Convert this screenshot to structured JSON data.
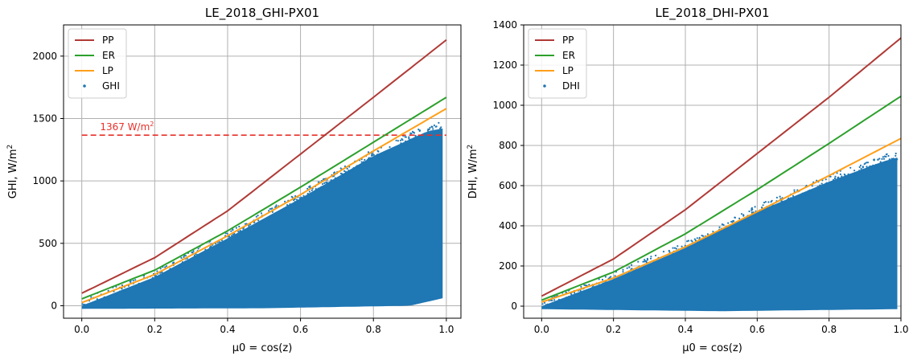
{
  "chart_data": [
    {
      "type": "scatter",
      "title": "LE_2018_GHI-PX01",
      "xlabel": "μ0 = cos(z)",
      "ylabel_main": "GHI, W/m",
      "ylabel_sup": "2",
      "xlim": [
        -0.05,
        1.04
      ],
      "ylim": [
        -100,
        2250
      ],
      "xticks": [
        0.0,
        0.2,
        0.4,
        0.6,
        0.8,
        1.0
      ],
      "xtick_labels": [
        "0.0",
        "0.2",
        "0.4",
        "0.6",
        "0.8",
        "1.0"
      ],
      "yticks": [
        0,
        500,
        1000,
        1500,
        2000
      ],
      "ytick_labels": [
        "0",
        "500",
        "1000",
        "1500",
        "2000"
      ],
      "grid": true,
      "legend_position": "top-left",
      "legend": [
        "PP",
        "ER",
        "LP",
        "GHI"
      ],
      "series": [
        {
          "name": "PP",
          "kind": "line",
          "color": "#b03a36",
          "values": [
            [
              0.0,
              100
            ],
            [
              0.2,
              385
            ],
            [
              0.4,
              760
            ],
            [
              0.6,
              1215
            ],
            [
              0.8,
              1670
            ],
            [
              1.0,
              2130
            ]
          ]
        },
        {
          "name": "ER",
          "kind": "line",
          "color": "#2ca02c",
          "values": [
            [
              0.0,
              55
            ],
            [
              0.2,
              285
            ],
            [
              0.4,
              600
            ],
            [
              0.6,
              950
            ],
            [
              0.8,
              1310
            ],
            [
              1.0,
              1670
            ]
          ]
        },
        {
          "name": "LP",
          "kind": "line",
          "color": "#ff9f1a",
          "values": [
            [
              0.0,
              25
            ],
            [
              0.2,
              250
            ],
            [
              0.4,
              560
            ],
            [
              0.6,
              890
            ],
            [
              0.8,
              1240
            ],
            [
              1.0,
              1580
            ]
          ]
        },
        {
          "name": "GHI",
          "kind": "scatter",
          "color": "#1f77b4",
          "upper_envelope": [
            [
              0.0,
              0
            ],
            [
              0.2,
              230
            ],
            [
              0.4,
              540
            ],
            [
              0.6,
              860
            ],
            [
              0.8,
              1200
            ],
            [
              0.95,
              1400
            ],
            [
              0.99,
              1420
            ]
          ],
          "lower_envelope": [
            [
              0.0,
              -25
            ],
            [
              0.5,
              -20
            ],
            [
              0.9,
              0
            ],
            [
              0.99,
              60
            ]
          ]
        }
      ],
      "reference_line": {
        "y": 1367,
        "label": "1367 W/m",
        "label_sup": "2",
        "color": "#e8312a"
      }
    },
    {
      "type": "scatter",
      "title": "LE_2018_DHI-PX01",
      "xlabel": "μ0 = cos(z)",
      "ylabel_main": "DHI, W/m",
      "ylabel_sup": "2",
      "xlim": [
        -0.05,
        1.0
      ],
      "ylim": [
        -60,
        1400
      ],
      "xticks": [
        0.0,
        0.2,
        0.4,
        0.6,
        0.8,
        1.0
      ],
      "xtick_labels": [
        "0.0",
        "0.2",
        "0.4",
        "0.6",
        "0.8",
        "1.0"
      ],
      "yticks": [
        0,
        200,
        400,
        600,
        800,
        1000,
        1200,
        1400
      ],
      "ytick_labels": [
        "0",
        "200",
        "400",
        "600",
        "800",
        "1000",
        "1200",
        "1400"
      ],
      "grid": true,
      "legend_position": "top-left",
      "legend": [
        "PP",
        "ER",
        "LP",
        "DHI"
      ],
      "series": [
        {
          "name": "PP",
          "kind": "line",
          "color": "#b03a36",
          "values": [
            [
              0.0,
              50
            ],
            [
              0.2,
              235
            ],
            [
              0.4,
              480
            ],
            [
              0.6,
              760
            ],
            [
              0.8,
              1040
            ],
            [
              1.0,
              1335
            ]
          ]
        },
        {
          "name": "ER",
          "kind": "line",
          "color": "#2ca02c",
          "values": [
            [
              0.0,
              30
            ],
            [
              0.2,
              170
            ],
            [
              0.4,
              360
            ],
            [
              0.6,
              580
            ],
            [
              0.8,
              810
            ],
            [
              1.0,
              1045
            ]
          ]
        },
        {
          "name": "LP",
          "kind": "line",
          "color": "#ff9f1a",
          "values": [
            [
              0.0,
              20
            ],
            [
              0.2,
              140
            ],
            [
              0.4,
              295
            ],
            [
              0.6,
              470
            ],
            [
              0.8,
              650
            ],
            [
              1.0,
              835
            ]
          ]
        },
        {
          "name": "DHI",
          "kind": "scatter",
          "color": "#1f77b4",
          "upper_envelope": [
            [
              0.0,
              0
            ],
            [
              0.2,
              135
            ],
            [
              0.4,
              290
            ],
            [
              0.6,
              470
            ],
            [
              0.8,
              620
            ],
            [
              0.95,
              720
            ],
            [
              0.99,
              740
            ]
          ],
          "lower_envelope": [
            [
              0.0,
              -15
            ],
            [
              0.5,
              -25
            ],
            [
              0.99,
              -15
            ]
          ]
        }
      ]
    }
  ]
}
